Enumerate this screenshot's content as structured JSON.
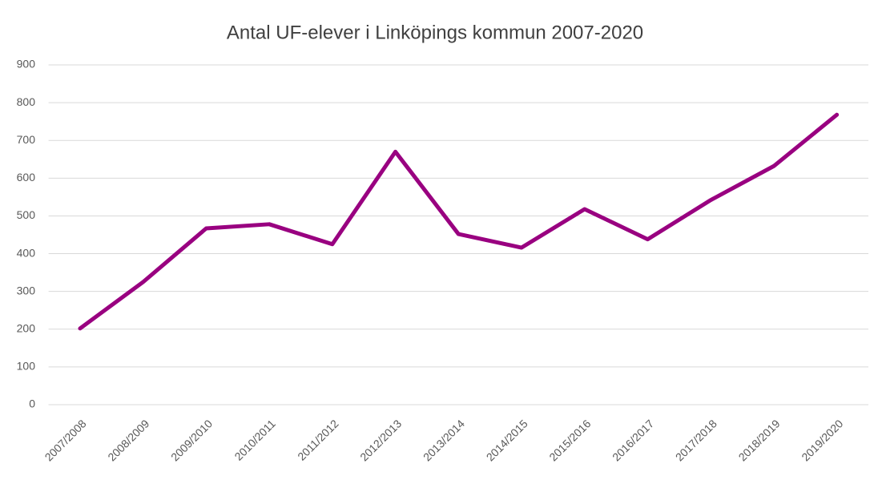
{
  "chart_data": {
    "type": "line",
    "title": "Antal UF-elever i Linköpings kommun 2007-2020",
    "categories": [
      "2007/2008",
      "2008/2009",
      "2009/2010",
      "2010/2011",
      "2011/2012",
      "2012/2013",
      "2013/2014",
      "2014/2015",
      "2015/2016",
      "2016/2017",
      "2017/2018",
      "2018/2019",
      "2019/2020"
    ],
    "series": [
      {
        "name": "Antal UF-elever",
        "color": "#990080",
        "values": [
          202,
          325,
          467,
          478,
          425,
          670,
          452,
          416,
          518,
          438,
          542,
          632,
          768
        ]
      }
    ],
    "ylim": [
      0,
      900
    ],
    "yticks": [
      0,
      100,
      200,
      300,
      400,
      500,
      600,
      700,
      800,
      900
    ],
    "grid": true
  }
}
